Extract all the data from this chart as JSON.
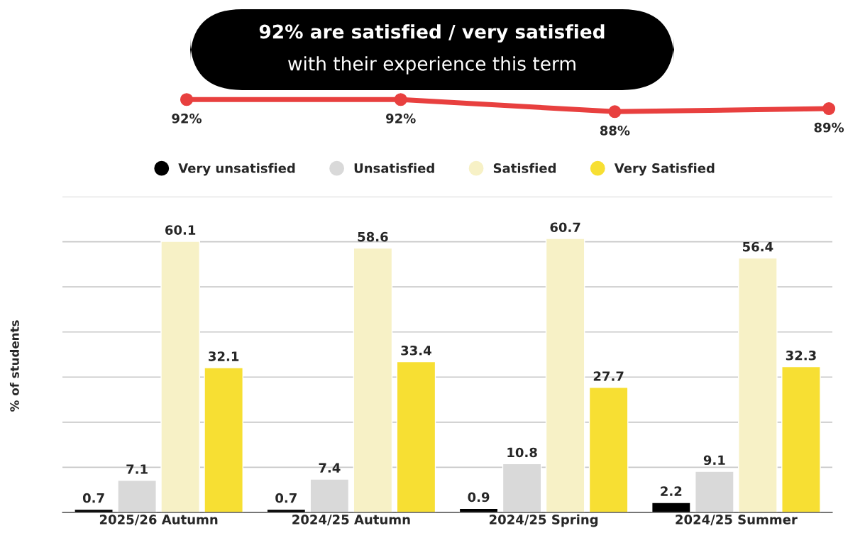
{
  "chart_data": [
    {
      "type": "line",
      "title": "92% are satisfied / very satisfied",
      "subtitle": "with their experience this term",
      "categories": [
        null,
        null,
        null,
        null
      ],
      "series": [
        {
          "color": "#e8403f",
          "values": [
            92,
            92,
            88,
            89
          ],
          "value_labels": [
            "92%",
            "92%",
            "88%",
            "89%"
          ]
        }
      ],
      "marker": "circle",
      "line_style": "solid",
      "tick_labels": false,
      "grid": false
    },
    {
      "type": "bar",
      "ylabel": "% of students",
      "categories": [
        "2025/26 Autumn",
        "2024/25 Autumn",
        "2024/25 Spring",
        "2024/25 Summer"
      ],
      "series": [
        {
          "name": "Very unsatisfied",
          "color": "#000000",
          "values": [
            0.7,
            0.7,
            0.9,
            2.2
          ]
        },
        {
          "name": "Unsatisfied",
          "color": "#d9d9d9",
          "values": [
            7.1,
            7.4,
            10.8,
            9.1
          ]
        },
        {
          "name": "Satisfied",
          "color": "#f7f1c6",
          "values": [
            60.1,
            58.6,
            60.7,
            56.4
          ]
        },
        {
          "name": "Very Satisfied",
          "color": "#f7df33",
          "values": [
            32.1,
            33.4,
            27.7,
            32.3
          ]
        }
      ],
      "ylim": [
        0,
        70
      ],
      "yticks": [
        {
          "value": 0,
          "label": null
        },
        {
          "value": 10,
          "label": null
        },
        {
          "value": 20,
          "label": null
        },
        {
          "value": 30,
          "label": null
        },
        {
          "value": 40,
          "label": null
        },
        {
          "value": 50,
          "label": null
        },
        {
          "value": 60,
          "label": null
        },
        {
          "value": 70,
          "label": null
        }
      ],
      "grid": "y",
      "tick_labels": "x",
      "data_labels": true,
      "legend": "top"
    }
  ]
}
